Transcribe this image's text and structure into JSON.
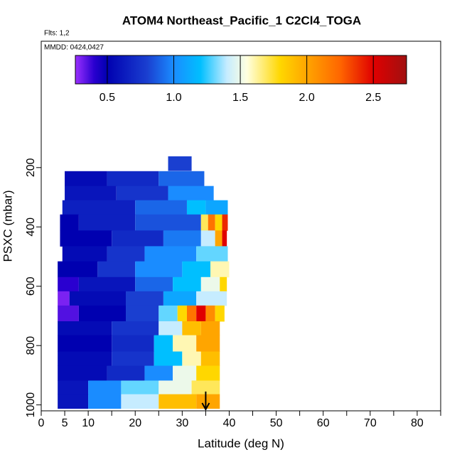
{
  "chart_data": {
    "type": "curtain",
    "title": "ATOM4 Northeast_Pacific_1 C2Cl4_TOGA",
    "subtitle": "Flts: 1,2",
    "annotation": "MMDD: 0424,0427",
    "xlabel": "Latitude (deg N)",
    "ylabel": "PSXC (mbar)",
    "xlim": [
      0,
      85
    ],
    "xticks": [
      0,
      5,
      10,
      20,
      30,
      40,
      50,
      60,
      70,
      80
    ],
    "xminor_ticks": [
      15,
      25,
      35,
      45,
      55,
      65,
      75,
      85
    ],
    "ylim": [
      1020,
      -226
    ],
    "yticks": [
      200,
      400,
      600,
      800,
      1000
    ],
    "colorbar_lim": [
      0.26,
      2.75
    ],
    "colorbar_ticks": [
      0.5,
      {
        "value": 1.0,
        "label": "1.0"
      },
      1.5,
      {
        "value": 2.0,
        "label": "2.0"
      },
      2.5
    ],
    "colormap": [
      [
        0.26,
        "#9b30ff"
      ],
      [
        0.4,
        "#2a00d0"
      ],
      [
        0.5,
        "#0000b0"
      ],
      [
        0.8,
        "#1a3fd0"
      ],
      [
        1.0,
        "#1a8cff"
      ],
      [
        1.2,
        "#00bfff"
      ],
      [
        1.4,
        "#c6ecff"
      ],
      [
        1.55,
        "#ffffe0"
      ],
      [
        1.8,
        "#ffd700"
      ],
      [
        2.0,
        "#ffa500"
      ],
      [
        2.25,
        "#ff6600"
      ],
      [
        2.5,
        "#e00000"
      ],
      [
        2.75,
        "#a01010"
      ]
    ],
    "arrow_lat": 35,
    "rows": [
      {
        "p": [
          162,
          210
        ],
        "cells": [
          [
            27,
            32,
            0.8
          ]
        ]
      },
      {
        "p": [
          212,
          262
        ],
        "cells": [
          [
            5,
            14,
            0.55
          ],
          [
            14,
            25,
            0.7
          ],
          [
            25,
            34.7,
            0.9
          ]
        ]
      },
      {
        "p": [
          262,
          310
        ],
        "cells": [
          [
            5,
            16,
            0.6
          ],
          [
            16,
            27,
            0.75
          ],
          [
            27,
            36.7,
            1.0
          ]
        ]
      },
      {
        "p": [
          310,
          358
        ],
        "cells": [
          [
            4.5,
            20,
            0.65
          ],
          [
            20,
            31,
            0.9
          ],
          [
            31,
            35,
            1.2
          ],
          [
            35,
            39.7,
            1.1
          ]
        ]
      },
      {
        "p": [
          358,
          412
        ],
        "cells": [
          [
            4,
            8,
            0.5
          ],
          [
            8,
            20,
            0.65
          ],
          [
            20,
            34,
            0.85
          ],
          [
            34,
            35.5,
            1.7
          ],
          [
            35.5,
            37,
            2.2
          ],
          [
            37,
            38.5,
            1.8
          ],
          [
            38.5,
            39.7,
            2.4
          ]
        ]
      },
      {
        "p": [
          412,
          465
        ],
        "cells": [
          [
            4,
            15,
            0.5
          ],
          [
            15,
            26,
            0.7
          ],
          [
            26,
            34,
            0.95
          ],
          [
            34,
            37,
            1.4
          ],
          [
            37,
            38.5,
            2.0
          ],
          [
            38.5,
            39.5,
            2.5
          ]
        ]
      },
      {
        "p": [
          465,
          516
        ],
        "cells": [
          [
            4.5,
            14,
            0.55
          ],
          [
            14,
            22,
            0.75
          ],
          [
            22,
            33,
            1.0
          ],
          [
            33,
            39.7,
            1.3
          ]
        ]
      },
      {
        "p": [
          516,
          569
        ],
        "cells": [
          [
            3.5,
            12,
            0.5
          ],
          [
            12,
            20,
            0.75
          ],
          [
            20,
            30,
            1.0
          ],
          [
            30,
            36,
            1.2
          ],
          [
            36,
            40,
            1.6
          ]
        ]
      },
      {
        "p": [
          569,
          617
        ],
        "cells": [
          [
            3.5,
            8,
            0.4
          ],
          [
            8,
            20,
            0.6
          ],
          [
            20,
            28,
            0.9
          ],
          [
            28,
            34,
            1.2
          ],
          [
            34,
            38,
            1.5
          ],
          [
            38,
            39.5,
            1.8
          ]
        ]
      },
      {
        "p": [
          617,
          665
        ],
        "cells": [
          [
            3.5,
            6,
            0.3
          ],
          [
            6,
            18,
            0.55
          ],
          [
            18,
            26,
            0.8
          ],
          [
            26,
            33,
            1.1
          ],
          [
            33,
            39.5,
            1.4
          ]
        ]
      },
      {
        "p": [
          665,
          718
        ],
        "cells": [
          [
            3.5,
            8,
            0.35
          ],
          [
            8,
            18,
            0.5
          ],
          [
            18,
            25,
            0.8
          ],
          [
            25,
            29,
            1.3
          ],
          [
            29,
            31,
            1.8
          ],
          [
            31,
            33,
            2.2
          ],
          [
            33,
            35,
            2.5
          ],
          [
            35,
            37,
            2.1
          ],
          [
            37,
            39,
            1.8
          ]
        ]
      },
      {
        "p": [
          718,
          765
        ],
        "cells": [
          [
            3.5,
            15,
            0.55
          ],
          [
            15,
            25,
            0.75
          ],
          [
            25,
            30,
            1.4
          ],
          [
            30,
            34,
            1.9
          ],
          [
            34,
            38,
            2.0
          ]
        ]
      },
      {
        "p": [
          765,
          820
        ],
        "cells": [
          [
            3.5,
            15,
            0.5
          ],
          [
            15,
            24,
            0.7
          ],
          [
            24,
            28,
            1.2
          ],
          [
            28,
            33,
            1.6
          ],
          [
            33,
            38,
            2.0
          ]
        ]
      },
      {
        "p": [
          820,
          868
        ],
        "cells": [
          [
            3.5,
            15,
            0.55
          ],
          [
            15,
            24,
            0.75
          ],
          [
            24,
            30,
            1.2
          ],
          [
            30,
            34,
            1.6
          ],
          [
            34,
            38,
            1.9
          ]
        ]
      },
      {
        "p": [
          868,
          918
        ],
        "cells": [
          [
            3.5,
            14,
            0.55
          ],
          [
            14,
            22,
            0.7
          ],
          [
            22,
            28,
            1.0
          ],
          [
            28,
            33,
            1.5
          ],
          [
            33,
            38,
            1.8
          ]
        ]
      },
      {
        "p": [
          918,
          964
        ],
        "cells": [
          [
            3.5,
            10,
            0.6
          ],
          [
            10,
            17,
            1.0
          ],
          [
            17,
            25,
            1.3
          ],
          [
            25,
            32,
            1.5
          ],
          [
            32,
            38,
            1.7
          ]
        ]
      },
      {
        "p": [
          964,
          1012
        ],
        "cells": [
          [
            3.5,
            10,
            0.6
          ],
          [
            10,
            17,
            1.0
          ],
          [
            17,
            25,
            1.4
          ],
          [
            25,
            33,
            1.9
          ],
          [
            33,
            38,
            2.0
          ]
        ]
      }
    ]
  }
}
